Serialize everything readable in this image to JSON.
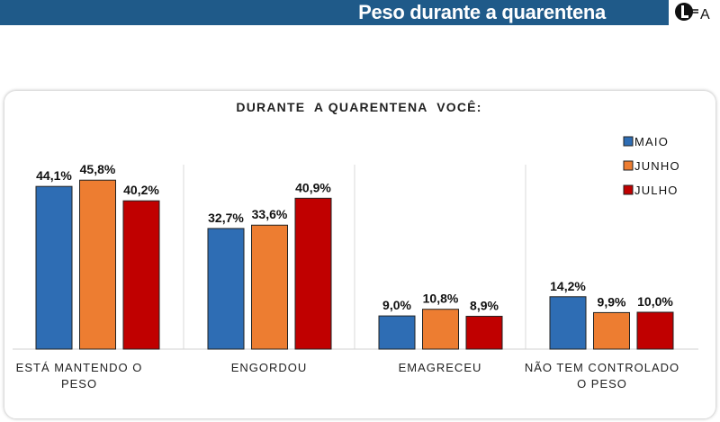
{
  "header": {
    "title": "Peso durante a quarentena",
    "logo_text": "LFA"
  },
  "colors": {
    "header": "#1f5a89",
    "MAIO": "#2e6db4",
    "JUNHO": "#ed7d31",
    "JULHO": "#c00000"
  },
  "chart_data": {
    "type": "bar",
    "title": "DURANTE  A QUARENTENA  VOCÊ:",
    "categories": [
      [
        "ESTÁ MANTENDO O",
        "PESO"
      ],
      [
        "ENGORDOU"
      ],
      [
        "EMAGRECEU"
      ],
      [
        "NÃO TEM CONTROLADO",
        "O PESO"
      ]
    ],
    "series": [
      {
        "name": "MAIO",
        "values": [
          44.1,
          32.7,
          9.0,
          14.2
        ],
        "labels": [
          "44,1%",
          "32,7%",
          "9,0%",
          "14,2%"
        ]
      },
      {
        "name": "JUNHO",
        "values": [
          45.8,
          33.6,
          10.8,
          9.9
        ],
        "labels": [
          "45,8%",
          "33,6%",
          "10,8%",
          "9,9%"
        ]
      },
      {
        "name": "JULHO",
        "values": [
          40.2,
          40.9,
          8.9,
          10.0
        ],
        "labels": [
          "40,2%",
          "40,9%",
          "8,9%",
          "10,0%"
        ]
      }
    ],
    "ylim": [
      0,
      50
    ],
    "legend": "top-right",
    "grid": false
  }
}
